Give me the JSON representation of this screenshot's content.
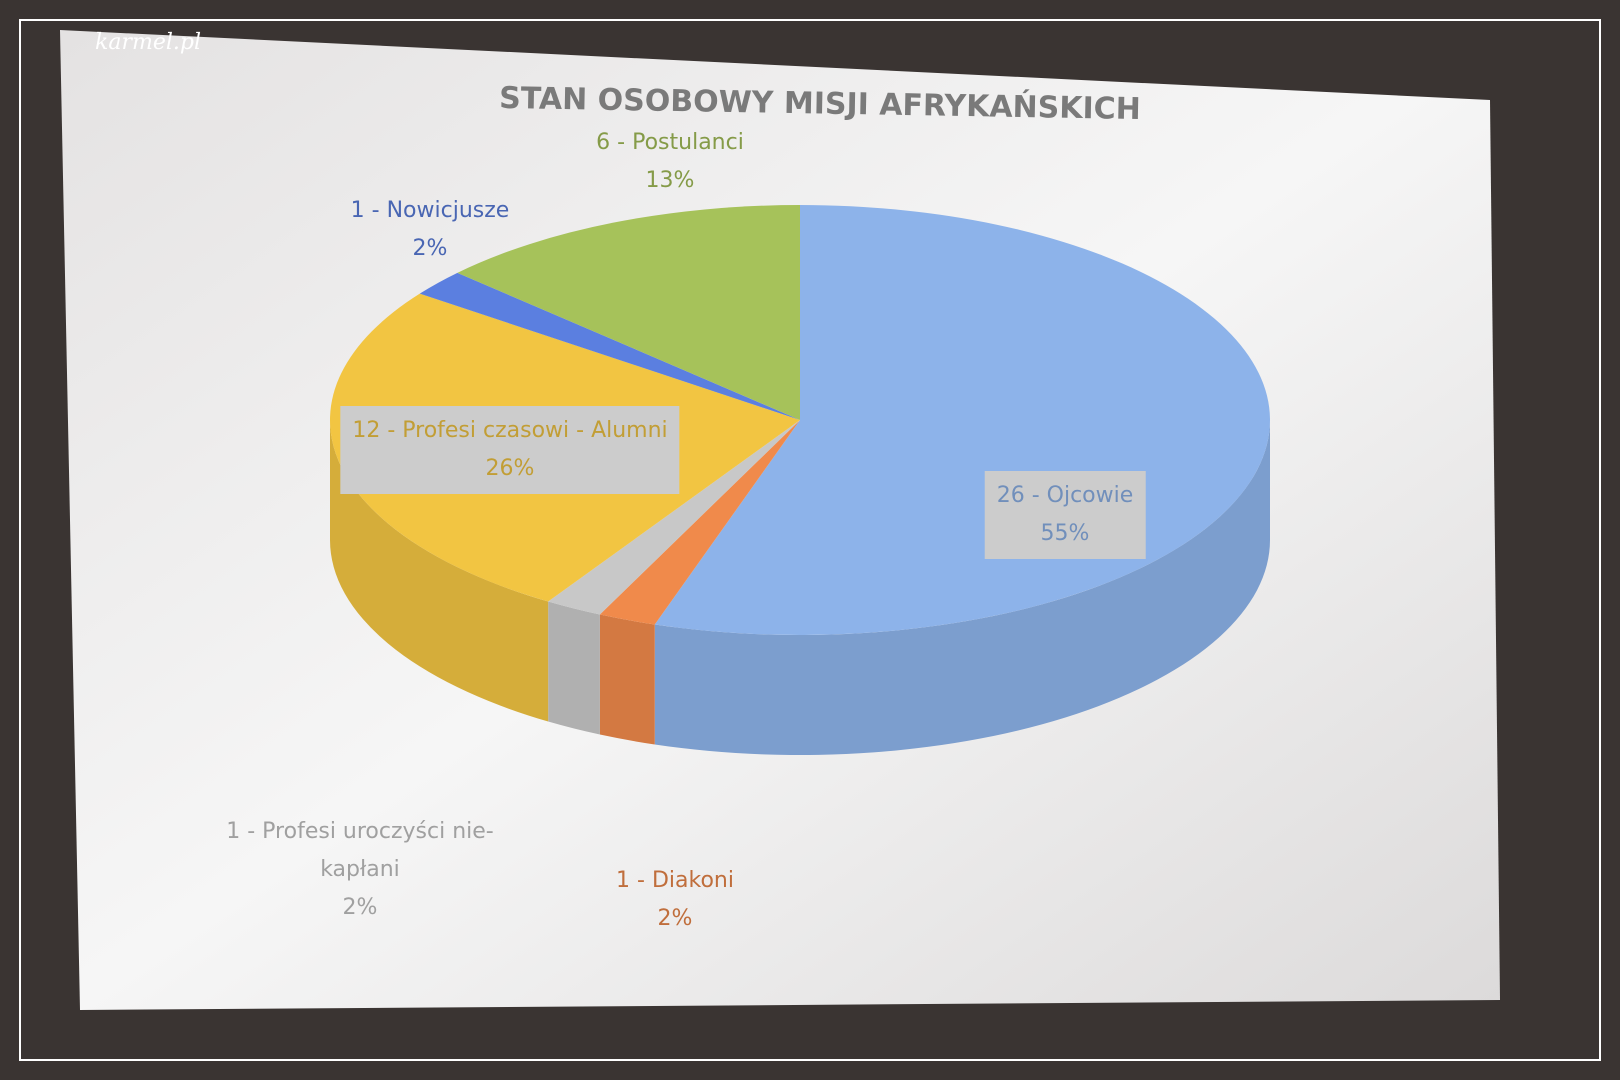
{
  "watermark": "karmel.pl",
  "chart_data": {
    "type": "pie",
    "title": "STAN OSOBOWY MISJI AFRYKAŃSKICH",
    "categories": [
      "26 - Ojcowie",
      "1 - Diakoni",
      "1 - Profesi uroczyści nie-kapłani",
      "12 - Profesi czasowi - Alumni",
      "1 - Nowicjusze",
      "6 - Postulanci"
    ],
    "values": [
      55,
      2,
      2,
      26,
      2,
      13
    ],
    "value_labels": [
      "55%",
      "2%",
      "2%",
      "26%",
      "2%",
      "13%"
    ],
    "colors": [
      "#8db3ea",
      "#f08a4b",
      "#c8c8c8",
      "#f2c542",
      "#5b7fe0",
      "#a6c25a"
    ]
  }
}
